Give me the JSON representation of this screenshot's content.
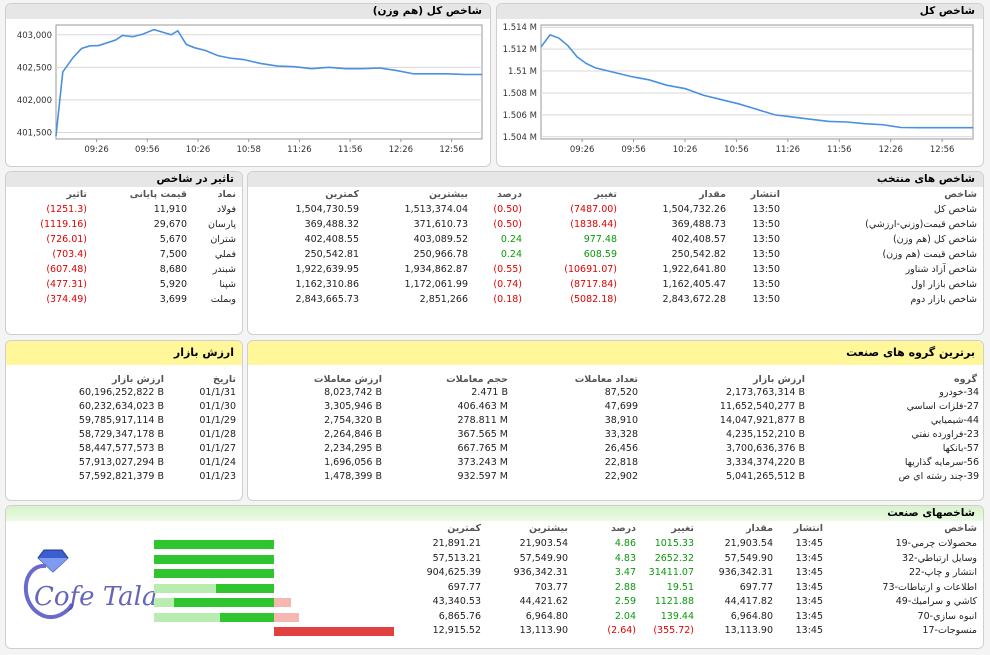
{
  "chart_left": {
    "title": "شاخص کل (هم وزن)",
    "chart_data": {
      "type": "line",
      "x_ticks": [
        "09:26",
        "09:56",
        "10:26",
        "10:58",
        "11:26",
        "11:56",
        "12:26",
        "12:56"
      ],
      "y_ticks": [
        "401,500",
        "402,000",
        "402,500",
        "403,000"
      ],
      "ylim": [
        401400,
        403150
      ],
      "series": [
        {
          "values": [
            [
              0,
              401450
            ],
            [
              0.8,
              402430
            ],
            [
              2,
              402650
            ],
            [
              3,
              402790
            ],
            [
              4,
              402830
            ],
            [
              5,
              402835
            ],
            [
              7,
              402920
            ],
            [
              7.8,
              402990
            ],
            [
              9,
              402970
            ],
            [
              10.2,
              403010
            ],
            [
              11.5,
              403080
            ],
            [
              12.5,
              403040
            ],
            [
              13.5,
              403000
            ],
            [
              14.3,
              403060
            ],
            [
              15.3,
              402850
            ],
            [
              16.3,
              402800
            ],
            [
              17.5,
              402760
            ],
            [
              19,
              402680
            ],
            [
              20.5,
              402640
            ],
            [
              22,
              402620
            ],
            [
              24,
              402560
            ],
            [
              26,
              402520
            ],
            [
              28,
              402510
            ],
            [
              30,
              402480
            ],
            [
              32,
              402500
            ],
            [
              34,
              402480
            ],
            [
              36,
              402480
            ],
            [
              38,
              402490
            ],
            [
              40,
              402450
            ],
            [
              42,
              402400
            ],
            [
              44,
              402400
            ],
            [
              46,
              402400
            ],
            [
              48,
              402390
            ],
            [
              50,
              402390
            ]
          ]
        }
      ]
    }
  },
  "chart_right": {
    "title": "شاخص کل",
    "chart_data": {
      "type": "line",
      "x_ticks": [
        "09:26",
        "09:56",
        "10:26",
        "10:56",
        "11:26",
        "11:56",
        "12:26",
        "12:56"
      ],
      "y_ticks": [
        "1.504 M",
        "1.506 M",
        "1.508 M",
        "1.51 M",
        "1.512 M",
        "1.514 M"
      ],
      "ylim": [
        1503800,
        1514200
      ],
      "series": [
        {
          "values": [
            [
              0,
              1512200
            ],
            [
              1,
              1513300
            ],
            [
              2,
              1513000
            ],
            [
              3,
              1512300
            ],
            [
              4,
              1511300
            ],
            [
              5,
              1510700
            ],
            [
              6,
              1510300
            ],
            [
              8,
              1509900
            ],
            [
              10,
              1509500
            ],
            [
              12,
              1509200
            ],
            [
              14,
              1508700
            ],
            [
              16,
              1508400
            ],
            [
              18,
              1507800
            ],
            [
              20,
              1507400
            ],
            [
              22,
              1507000
            ],
            [
              24,
              1506500
            ],
            [
              26,
              1506000
            ],
            [
              28,
              1505800
            ],
            [
              30,
              1505600
            ],
            [
              32,
              1505400
            ],
            [
              34,
              1505350
            ],
            [
              36,
              1505200
            ],
            [
              38,
              1505100
            ],
            [
              40,
              1504850
            ],
            [
              42,
              1504830
            ],
            [
              44,
              1504830
            ],
            [
              46,
              1504830
            ],
            [
              48,
              1504830
            ]
          ]
        }
      ]
    }
  },
  "impact": {
    "title": "تاثیر در شاخص",
    "headers": [
      "نماد",
      "قیمت پایانی",
      "تاثیر"
    ],
    "rows": [
      [
        "فولاد",
        "11,910",
        "(1251.3)"
      ],
      [
        "پارسان",
        "29,670",
        "(1119.16)"
      ],
      [
        "شتران",
        "5,670",
        "(726.01)"
      ],
      [
        "فملي",
        "7,500",
        "(703.4)"
      ],
      [
        "شبندر",
        "8,680",
        "(607.48)"
      ],
      [
        "شپنا",
        "5,920",
        "(477.31)"
      ],
      [
        "وبملت",
        "3,699",
        "(374.49)"
      ]
    ]
  },
  "selected": {
    "title": "شاخص های منتخب",
    "headers": [
      "شاخص",
      "انتشار",
      "مقدار",
      "تغییر",
      "درصد",
      "بیشترین",
      "کمترین"
    ],
    "rows": [
      [
        "شاخص کل",
        "13:50",
        "1,504,732.26",
        "(7487.00)",
        "(0.50)",
        "1,513,374.04",
        "1,504,730.59"
      ],
      [
        "شاخص قيمت(وزني-ارزشي)",
        "13:50",
        "369,488.73",
        "(1838.44)",
        "(0.50)",
        "371,610.73",
        "369,488.32"
      ],
      [
        "شاخص كل (هم وزن)",
        "13:50",
        "402,408.57",
        "977.48",
        "0.24",
        "403,089.52",
        "402,408.55"
      ],
      [
        "شاخص قيمت (هم وزن)",
        "13:50",
        "250,542.82",
        "608.59",
        "0.24",
        "250,966.78",
        "250,542.81"
      ],
      [
        "شاخص آزاد شناور",
        "13:50",
        "1,922,641.80",
        "(10691.07)",
        "(0.55)",
        "1,934,862.87",
        "1,922,639.95"
      ],
      [
        "شاخص بازار اول",
        "13:50",
        "1,162,405.47",
        "(8717.84)",
        "(0.74)",
        "1,172,061.99",
        "1,162,310.86"
      ],
      [
        "شاخص بازار دوم",
        "13:50",
        "2,843,672.28",
        "(5082.18)",
        "(0.18)",
        "2,851,266",
        "2,843,665.73"
      ]
    ]
  },
  "market": {
    "title": "ارزش بازار",
    "headers": [
      "تاریخ",
      "ارزش بازار"
    ],
    "rows": [
      [
        "01/1/31",
        "60,196,252,822 B"
      ],
      [
        "01/1/30",
        "60,232,634,023 B"
      ],
      [
        "01/1/29",
        "59,785,917,114 B"
      ],
      [
        "01/1/28",
        "58,729,347,178 B"
      ],
      [
        "01/1/27",
        "58,447,577,573 B"
      ],
      [
        "01/1/24",
        "57,913,027,294 B"
      ],
      [
        "01/1/23",
        "57,592,821,379 B"
      ]
    ]
  },
  "groups": {
    "title": "برترین گروه های صنعت",
    "headers": [
      "گروه",
      "ارزش بازار",
      "تعداد معاملات",
      "حجم معاملات",
      "ارزش معاملات"
    ],
    "rows": [
      [
        "34-خودرو",
        "2,173,763,314 B",
        "87,520",
        "2.471 B",
        "8,023,742 B"
      ],
      [
        "27-فلزات اساسي",
        "11,652,540,277 B",
        "47,699",
        "406.463 M",
        "3,305,946 B"
      ],
      [
        "44-شيميايي",
        "14,047,921,877 B",
        "38,910",
        "278.811 M",
        "2,754,320 B"
      ],
      [
        "23-فراورده نفتي",
        "4,235,152,210 B",
        "33,328",
        "367.565 M",
        "2,264,846 B"
      ],
      [
        "57-بانكها",
        "3,700,636,376 B",
        "26,456",
        "667.765 M",
        "2,234,295 B"
      ],
      [
        "56-سرمايه گذاريها",
        "3,334,374,220 B",
        "22,818",
        "373.243 M",
        "1,696,056 B"
      ],
      [
        "39-چند رشته اي ص",
        "5,041,265,512 B",
        "22,902",
        "932.597 M",
        "1,478,399 B"
      ]
    ]
  },
  "industry": {
    "title": "شاخصهای صنعت",
    "headers": [
      "شاخص",
      "انتشار",
      "مقدار",
      "تغییر",
      "درصد",
      "بیشترین",
      "کمترین"
    ],
    "rows": [
      [
        "19-محصولات چرمي",
        "13:45",
        "21,903.54",
        "1015.33",
        "4.86",
        "21,903.54",
        "21,891.21"
      ],
      [
        "32-وسايل ارتباطي",
        "13:45",
        "57,549.90",
        "2652.32",
        "4.83",
        "57,549.90",
        "57,513.21"
      ],
      [
        "22-انتشار و چاپ",
        "13:45",
        "936,342.31",
        "31411.07",
        "3.47",
        "936,342.31",
        "904,625.39"
      ],
      [
        "73-اطلاعات و ارتباطات",
        "13:45",
        "697.77",
        "19.51",
        "2.88",
        "703.77",
        "697.77"
      ],
      [
        "49-كاشي و سراميك",
        "13:45",
        "44,417.82",
        "1121.88",
        "2.59",
        "44,421.62",
        "43,340.53"
      ],
      [
        "70-انبوه سازي",
        "13:45",
        "6,964.80",
        "139.44",
        "2.04",
        "6,964.80",
        "6,865.76"
      ],
      [
        "17-منسوجات",
        "13:45",
        "13,113.90",
        "(355.72)",
        "(2.64)",
        "13,113.90",
        "12,915.52"
      ]
    ],
    "bars": [
      {
        "green": 1,
        "light": 0,
        "red": 0
      },
      {
        "green": 1,
        "light": 0,
        "red": 0
      },
      {
        "green": 1,
        "light": 0,
        "red": 0
      },
      {
        "green": 0.48,
        "light": 0.52,
        "red": 0
      },
      {
        "green": 0.83,
        "light": 0.17,
        "red": 0.1
      },
      {
        "green": 0.45,
        "light": 0.55,
        "red": 0.15
      },
      {
        "green": 0,
        "light": 0,
        "red": 1
      }
    ]
  },
  "logo": {
    "text": "Cofe Tala"
  },
  "colors": {
    "line": "#4a90e2",
    "neg": "#e00000",
    "pos": "#0a9a0a",
    "green": "#2ec52e",
    "light": "#b8ecb0",
    "red": "#e04040",
    "pink": "#f6b7b0"
  }
}
